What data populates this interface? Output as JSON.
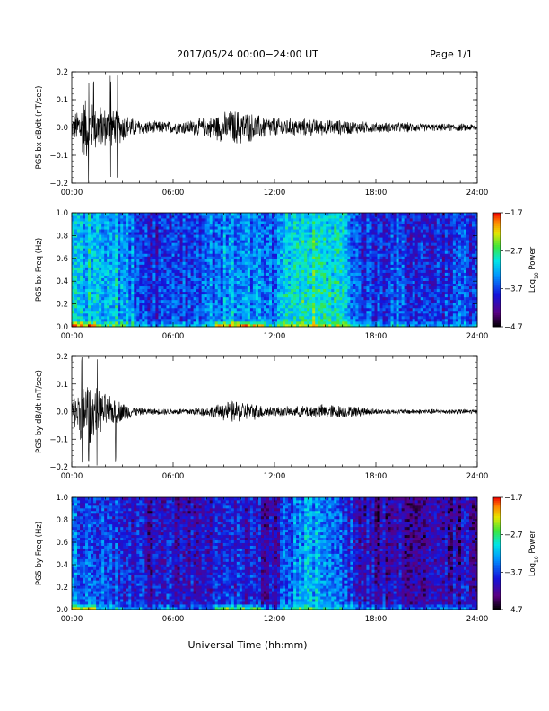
{
  "header": {
    "title": "2017/05/24  00:00−24:00 UT",
    "page": "Page 1/1"
  },
  "x_axis_title": "Universal Time (hh:mm)",
  "chart_data": [
    {
      "type": "line",
      "ylabel": "PG5 bx dB/dt (nT/sec)",
      "xlim": [
        0,
        24
      ],
      "ylim": [
        -0.2,
        0.2
      ],
      "x_ticks": [
        "00:00",
        "06:00",
        "12:00",
        "18:00",
        "24:00"
      ],
      "y_ticks": [
        "−0.2",
        "−0.1",
        "0.0",
        "0.1",
        "0.2"
      ],
      "y_tick_values": [
        -0.2,
        -0.1,
        0.0,
        0.1,
        0.2
      ],
      "grid": false,
      "envelope": {
        "hours": [
          0,
          0.3,
          0.6,
          0.9,
          1.2,
          1.5,
          2.0,
          2.5,
          3.0,
          3.5,
          4,
          5,
          6,
          7,
          8,
          8.5,
          9,
          9.5,
          10,
          10.5,
          11,
          11.5,
          12,
          13,
          14,
          15,
          16,
          17,
          18,
          19,
          20,
          21,
          22,
          23,
          24
        ],
        "amplitude": [
          0.04,
          0.07,
          0.11,
          0.13,
          0.1,
          0.09,
          0.08,
          0.07,
          0.06,
          0.04,
          0.03,
          0.025,
          0.025,
          0.03,
          0.04,
          0.05,
          0.06,
          0.07,
          0.07,
          0.06,
          0.05,
          0.045,
          0.04,
          0.035,
          0.035,
          0.03,
          0.03,
          0.025,
          0.02,
          0.02,
          0.02,
          0.015,
          0.015,
          0.015,
          0.015
        ]
      },
      "extremes_hours": [
        1.0,
        1.3,
        2.3,
        2.7
      ]
    },
    {
      "type": "heatmap",
      "ylabel": "PG5 bx Freq (Hz)",
      "xlim": [
        0,
        24
      ],
      "ylim": [
        0,
        1.0
      ],
      "x_ticks": [
        "00:00",
        "06:00",
        "12:00",
        "18:00",
        "24:00"
      ],
      "y_ticks": [
        "0.0",
        "0.2",
        "0.4",
        "0.6",
        "0.8",
        "1.0"
      ],
      "colorbar": {
        "label": "Log10 Power",
        "range": [
          -4.7,
          -1.7
        ],
        "ticks": [
          "−1.7",
          "−2.7",
          "−3.7",
          "−4.7"
        ],
        "tick_values": [
          -1.7,
          -2.7,
          -3.7,
          -4.7
        ]
      },
      "background_log_power": {
        "hours": [
          0,
          1,
          2,
          3,
          4,
          5,
          6,
          7,
          8,
          9,
          10,
          11,
          12,
          13,
          14,
          15,
          16,
          17,
          18,
          19,
          20,
          21,
          22,
          23,
          24
        ],
        "value": [
          -3.2,
          -3.1,
          -3.1,
          -3.3,
          -3.6,
          -3.8,
          -3.6,
          -3.7,
          -3.5,
          -3.4,
          -3.3,
          -3.5,
          -3.6,
          -3.0,
          -2.9,
          -2.95,
          -3.0,
          -3.7,
          -3.8,
          -3.6,
          -3.8,
          -3.8,
          -3.8,
          -3.7,
          -3.7
        ]
      }
    },
    {
      "type": "line",
      "ylabel": "PG5 by dB/dt (nT/sec)",
      "xlim": [
        0,
        24
      ],
      "ylim": [
        -0.2,
        0.2
      ],
      "x_ticks": [
        "00:00",
        "06:00",
        "12:00",
        "18:00",
        "24:00"
      ],
      "y_ticks": [
        "−0.2",
        "−0.1",
        "0.0",
        "0.1",
        "0.2"
      ],
      "y_tick_values": [
        -0.2,
        -0.1,
        0.0,
        0.1,
        0.2
      ],
      "grid": false,
      "envelope": {
        "hours": [
          0,
          0.3,
          0.6,
          0.9,
          1.2,
          1.5,
          2.0,
          2.5,
          3.0,
          3.5,
          4,
          5,
          6,
          7,
          8,
          8.5,
          9,
          9.5,
          10,
          10.5,
          11,
          11.5,
          12,
          13,
          14,
          15,
          16,
          17,
          18,
          19,
          20,
          21,
          22,
          23,
          24
        ],
        "amplitude": [
          0.04,
          0.08,
          0.12,
          0.14,
          0.11,
          0.09,
          0.07,
          0.05,
          0.04,
          0.025,
          0.015,
          0.012,
          0.012,
          0.015,
          0.02,
          0.025,
          0.035,
          0.045,
          0.04,
          0.035,
          0.03,
          0.025,
          0.02,
          0.02,
          0.025,
          0.03,
          0.025,
          0.02,
          0.012,
          0.01,
          0.01,
          0.01,
          0.01,
          0.01,
          0.01
        ]
      },
      "extremes_hours": [
        0.6,
        1.0,
        1.5,
        2.6
      ]
    },
    {
      "type": "heatmap",
      "ylabel": "PG5 by Freq (Hz)",
      "xlim": [
        0,
        24
      ],
      "ylim": [
        0,
        1.0
      ],
      "x_ticks": [
        "00:00",
        "06:00",
        "12:00",
        "18:00",
        "24:00"
      ],
      "y_ticks": [
        "0.0",
        "0.2",
        "0.4",
        "0.6",
        "0.8",
        "1.0"
      ],
      "colorbar": {
        "label": "Log10 Power",
        "range": [
          -4.7,
          -1.7
        ],
        "ticks": [
          "−1.7",
          "−2.7",
          "−3.7",
          "−4.7"
        ],
        "tick_values": [
          -1.7,
          -2.7,
          -3.7,
          -4.7
        ]
      },
      "background_log_power": {
        "hours": [
          0,
          1,
          2,
          3,
          4,
          5,
          6,
          7,
          8,
          9,
          10,
          11,
          12,
          13,
          14,
          15,
          16,
          17,
          18,
          19,
          20,
          21,
          22,
          23,
          24
        ],
        "value": [
          -3.6,
          -3.5,
          -3.6,
          -3.8,
          -3.9,
          -4.1,
          -3.9,
          -4.0,
          -3.9,
          -3.8,
          -3.9,
          -4.0,
          -4.0,
          -3.4,
          -3.3,
          -3.4,
          -3.5,
          -4.0,
          -4.1,
          -4.0,
          -4.2,
          -4.2,
          -4.2,
          -4.1,
          -4.1
        ]
      }
    }
  ]
}
